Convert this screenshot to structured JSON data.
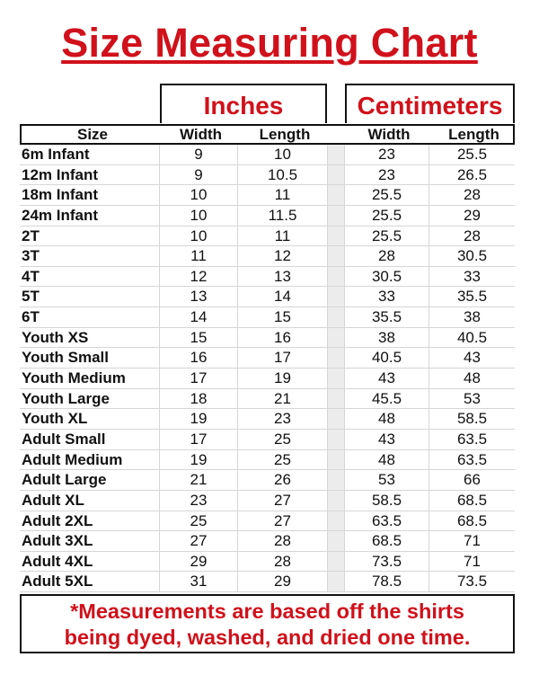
{
  "title": "Size Measuring Chart",
  "groups": {
    "inches": "Inches",
    "centimeters": "Centimeters"
  },
  "columns": [
    "Size",
    "Width",
    "Length",
    "Width",
    "Length"
  ],
  "rows": [
    [
      "6m Infant",
      "9",
      "10",
      "23",
      "25.5"
    ],
    [
      "12m Infant",
      "9",
      "10.5",
      "23",
      "26.5"
    ],
    [
      "18m Infant",
      "10",
      "11",
      "25.5",
      "28"
    ],
    [
      "24m Infant",
      "10",
      "11.5",
      "25.5",
      "29"
    ],
    [
      "2T",
      "10",
      "11",
      "25.5",
      "28"
    ],
    [
      "3T",
      "11",
      "12",
      "28",
      "30.5"
    ],
    [
      "4T",
      "12",
      "13",
      "30.5",
      "33"
    ],
    [
      "5T",
      "13",
      "14",
      "33",
      "35.5"
    ],
    [
      "6T",
      "14",
      "15",
      "35.5",
      "38"
    ],
    [
      "Youth XS",
      "15",
      "16",
      "38",
      "40.5"
    ],
    [
      "Youth Small",
      "16",
      "17",
      "40.5",
      "43"
    ],
    [
      "Youth Medium",
      "17",
      "19",
      "43",
      "48"
    ],
    [
      "Youth Large",
      "18",
      "21",
      "45.5",
      "53"
    ],
    [
      "Youth XL",
      "19",
      "23",
      "48",
      "58.5"
    ],
    [
      "Adult Small",
      "17",
      "25",
      "43",
      "63.5"
    ],
    [
      "Adult Medium",
      "19",
      "25",
      "48",
      "63.5"
    ],
    [
      "Adult Large",
      "21",
      "26",
      "53",
      "66"
    ],
    [
      "Adult XL",
      "23",
      "27",
      "58.5",
      "68.5"
    ],
    [
      "Adult 2XL",
      "25",
      "27",
      "63.5",
      "68.5"
    ],
    [
      "Adult 3XL",
      "27",
      "28",
      "68.5",
      "71"
    ],
    [
      "Adult 4XL",
      "29",
      "28",
      "73.5",
      "71"
    ],
    [
      "Adult 5XL",
      "31",
      "29",
      "78.5",
      "73.5"
    ]
  ],
  "note": {
    "line1": "*Measurements are based off the shirts",
    "line2": "being dyed, washed, and dried one time."
  },
  "colors": {
    "accent": "#d0111b",
    "border": "#111111"
  }
}
